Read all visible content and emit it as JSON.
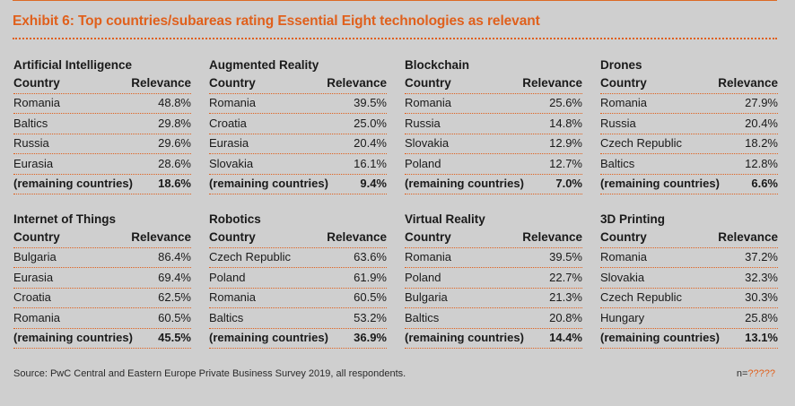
{
  "title": "Exhibit 6: Top countries/subareas rating Essential Eight technologies as relevant",
  "header_labels": {
    "country": "Country",
    "relevance": "Relevance"
  },
  "panels": [
    {
      "name": "Artificial Intelligence",
      "rows": [
        [
          "Romania",
          "48.8%"
        ],
        [
          "Baltics",
          "29.8%"
        ],
        [
          "Russia",
          "29.6%"
        ],
        [
          "Eurasia",
          "28.6%"
        ]
      ],
      "remaining": [
        "(remaining countries)",
        "18.6%"
      ]
    },
    {
      "name": "Augmented Reality",
      "rows": [
        [
          "Romania",
          "39.5%"
        ],
        [
          "Croatia",
          "25.0%"
        ],
        [
          "Eurasia",
          "20.4%"
        ],
        [
          "Slovakia",
          "16.1%"
        ]
      ],
      "remaining": [
        "(remaining countries)",
        "9.4%"
      ]
    },
    {
      "name": "Blockchain",
      "rows": [
        [
          "Romania",
          "25.6%"
        ],
        [
          "Russia",
          "14.8%"
        ],
        [
          "Slovakia",
          "12.9%"
        ],
        [
          "Poland",
          "12.7%"
        ]
      ],
      "remaining": [
        "(remaining countries)",
        "7.0%"
      ]
    },
    {
      "name": "Drones",
      "rows": [
        [
          "Romania",
          "27.9%"
        ],
        [
          "Russia",
          "20.4%"
        ],
        [
          "Czech Republic",
          "18.2%"
        ],
        [
          "Baltics",
          "12.8%"
        ]
      ],
      "remaining": [
        "(remaining countries)",
        "6.6%"
      ]
    },
    {
      "name": "Internet of Things",
      "rows": [
        [
          "Bulgaria",
          "86.4%"
        ],
        [
          "Eurasia",
          "69.4%"
        ],
        [
          "Croatia",
          "62.5%"
        ],
        [
          "Romania",
          "60.5%"
        ]
      ],
      "remaining": [
        "(remaining countries)",
        "45.5%"
      ]
    },
    {
      "name": "Robotics",
      "rows": [
        [
          "Czech Republic",
          "63.6%"
        ],
        [
          "Poland",
          "61.9%"
        ],
        [
          "Romania",
          "60.5%"
        ],
        [
          "Baltics",
          "53.2%"
        ]
      ],
      "remaining": [
        "(remaining countries)",
        "36.9%"
      ]
    },
    {
      "name": "Virtual Reality",
      "rows": [
        [
          "Romania",
          "39.5%"
        ],
        [
          "Poland",
          "22.7%"
        ],
        [
          "Bulgaria",
          "21.3%"
        ],
        [
          "Baltics",
          "20.8%"
        ]
      ],
      "remaining": [
        "(remaining countries)",
        "14.4%"
      ]
    },
    {
      "name": "3D Printing",
      "rows": [
        [
          "Romania",
          "37.2%"
        ],
        [
          "Slovakia",
          "32.3%"
        ],
        [
          "Czech Republic",
          "30.3%"
        ],
        [
          "Hungary",
          "25.8%"
        ]
      ],
      "remaining": [
        "(remaining countries)",
        "13.1%"
      ]
    }
  ],
  "source": "Source: PwC Central and Eastern Europe Private Business Survey 2019, all respondents.",
  "n_label": "n=",
  "n_value": "?????",
  "colors": {
    "accent": "#e0601c",
    "background": "#cfcfcf"
  }
}
